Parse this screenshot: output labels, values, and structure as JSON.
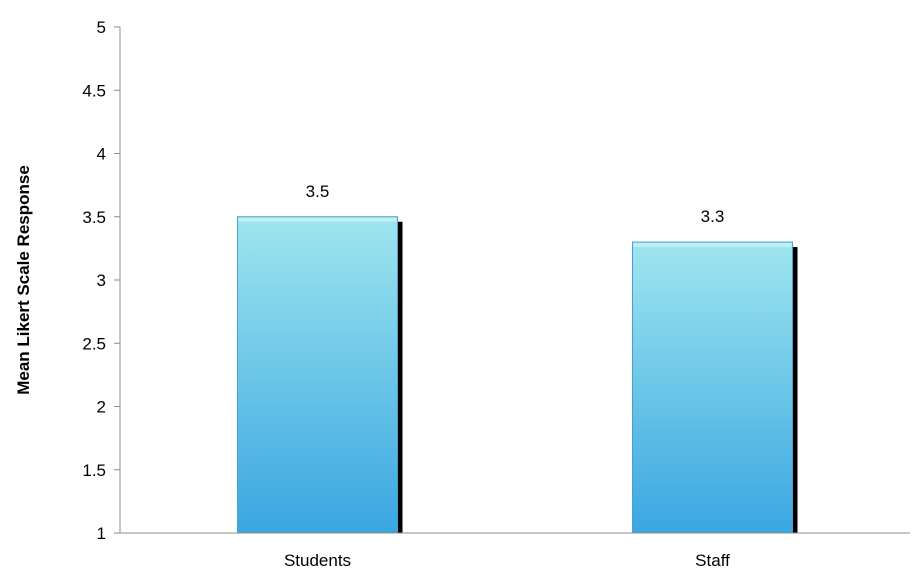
{
  "chart_data": {
    "type": "bar",
    "categories": [
      "Students",
      "Staff"
    ],
    "values": [
      3.5,
      3.3
    ],
    "data_labels": [
      "3.5",
      "3.3"
    ],
    "title": "",
    "xlabel": "",
    "ylabel": "Mean Likert Scale Response",
    "ylim": [
      1,
      5
    ],
    "yticks": [
      "1",
      "1.5",
      "2",
      "2.5",
      "3",
      "3.5",
      "4",
      "4.5",
      "5"
    ],
    "grid": false,
    "legend": "none",
    "colors": {
      "bar_top": "#9ee6ee",
      "bar_bottom": "#3aa6e2",
      "bar_edge": "#4a9fcf",
      "shadow": "#000000",
      "axis": "#8c8c8c"
    }
  }
}
